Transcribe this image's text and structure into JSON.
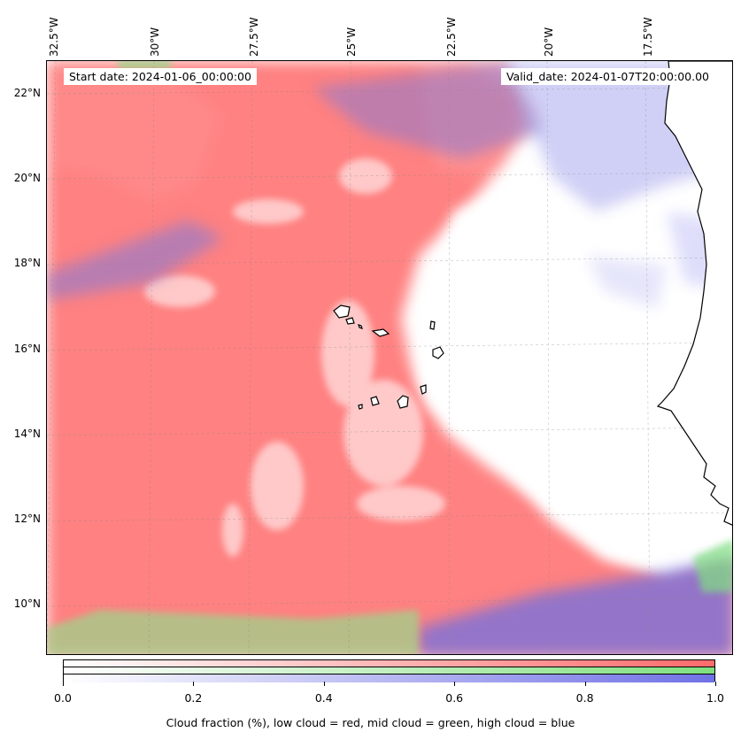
{
  "header": {
    "start_date": "Start date: 2024-01-06_00:00:00",
    "valid_date": "Valid_date: 2024-01-07T20:00:00.00"
  },
  "axes": {
    "lon_ticks": [
      "32.5°W",
      "30°W",
      "27.5°W",
      "25°W",
      "22.5°W",
      "20°W",
      "17.5°W"
    ],
    "lat_ticks": [
      "22°N",
      "20°N",
      "18°N",
      "16°N",
      "14°N",
      "12°N",
      "10°N"
    ]
  },
  "colorbar": {
    "ticks": [
      "0.0",
      "0.2",
      "0.4",
      "0.6",
      "0.8",
      "1.0"
    ],
    "label": "Cloud fraction (%), low cloud = red, mid cloud = green, high cloud = blue",
    "colors": {
      "low": "#ff6b6b",
      "mid": "#7fe07f",
      "high": "#7070e6"
    }
  },
  "map": {
    "gridlines": true,
    "land_color": "#ffffff",
    "coast_color": "#000000"
  }
}
